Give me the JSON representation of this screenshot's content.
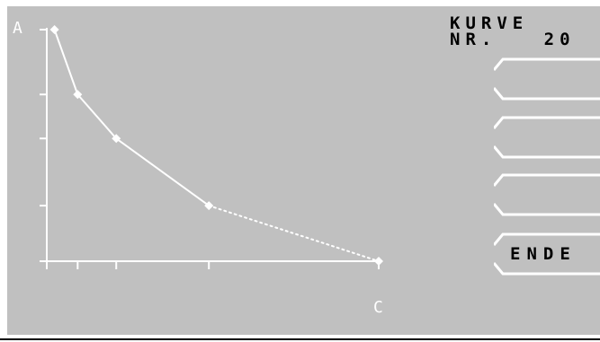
{
  "title": {
    "line1": "KURVE",
    "line2_label": "NR.",
    "line2_number": "20"
  },
  "softkeys": [
    {
      "label": ""
    },
    {
      "label": ""
    },
    {
      "label": ""
    },
    {
      "label": "ENDE"
    }
  ],
  "chart_data": {
    "type": "line",
    "ylabel": "A",
    "xlabel": "C",
    "x": [
      1,
      4,
      9,
      21,
      43
    ],
    "y": [
      100,
      72,
      53,
      24,
      0
    ],
    "xlim": [
      0,
      43
    ],
    "ylim": [
      0,
      100
    ],
    "y_ticks": [
      0,
      24,
      53,
      72,
      100
    ],
    "x_ticks": [
      0,
      4,
      9,
      21,
      43
    ],
    "segment_styles": [
      "solid",
      "solid",
      "solid",
      "dotted"
    ],
    "grid": false,
    "colors": {
      "screen": "#c0c0c0",
      "line": "#ffffff",
      "text": "#000000"
    }
  }
}
